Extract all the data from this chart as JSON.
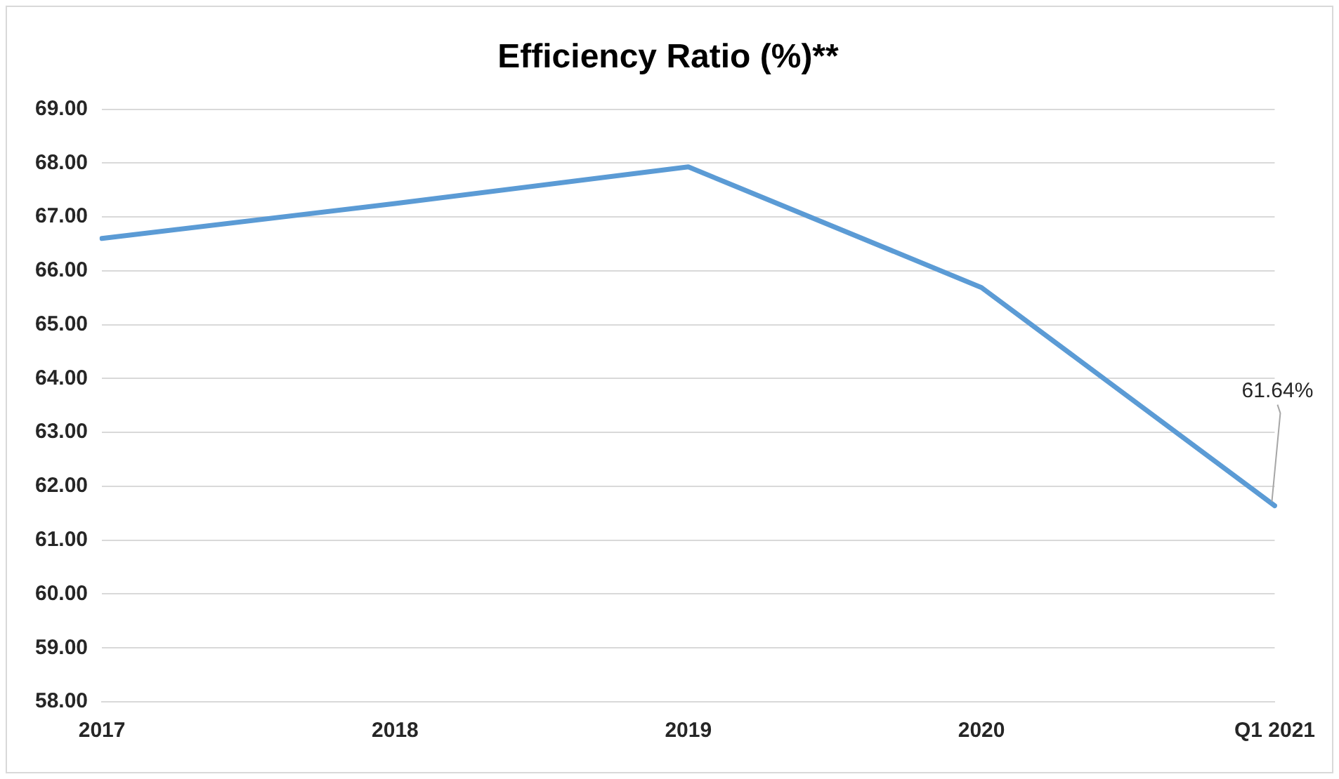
{
  "chart_data": {
    "type": "line",
    "title": "Efficiency Ratio (%)**",
    "categories": [
      "2017",
      "2018",
      "2019",
      "2020",
      "Q1 2021"
    ],
    "series": [
      {
        "color": "#5b9bd5",
        "values": [
          66.6,
          67.25,
          67.93,
          65.69,
          61.64
        ],
        "value_labels": [
          null,
          null,
          null,
          null,
          "61.64%"
        ]
      }
    ],
    "ylim": [
      58,
      69
    ],
    "yticks": [
      {
        "value": 58,
        "label": "58.00"
      },
      {
        "value": 59,
        "label": "59.00"
      },
      {
        "value": 60,
        "label": "60.00"
      },
      {
        "value": 61,
        "label": "61.00"
      },
      {
        "value": 62,
        "label": "62.00"
      },
      {
        "value": 63,
        "label": "63.00"
      },
      {
        "value": 64,
        "label": "64.00"
      },
      {
        "value": 65,
        "label": "65.00"
      },
      {
        "value": 66,
        "label": "66.00"
      },
      {
        "value": 67,
        "label": "67.00"
      },
      {
        "value": 68,
        "label": "68.00"
      },
      {
        "value": 69,
        "label": "69.00"
      }
    ],
    "grid": "y",
    "legend": false,
    "marker": "none",
    "line_style": "solid"
  }
}
